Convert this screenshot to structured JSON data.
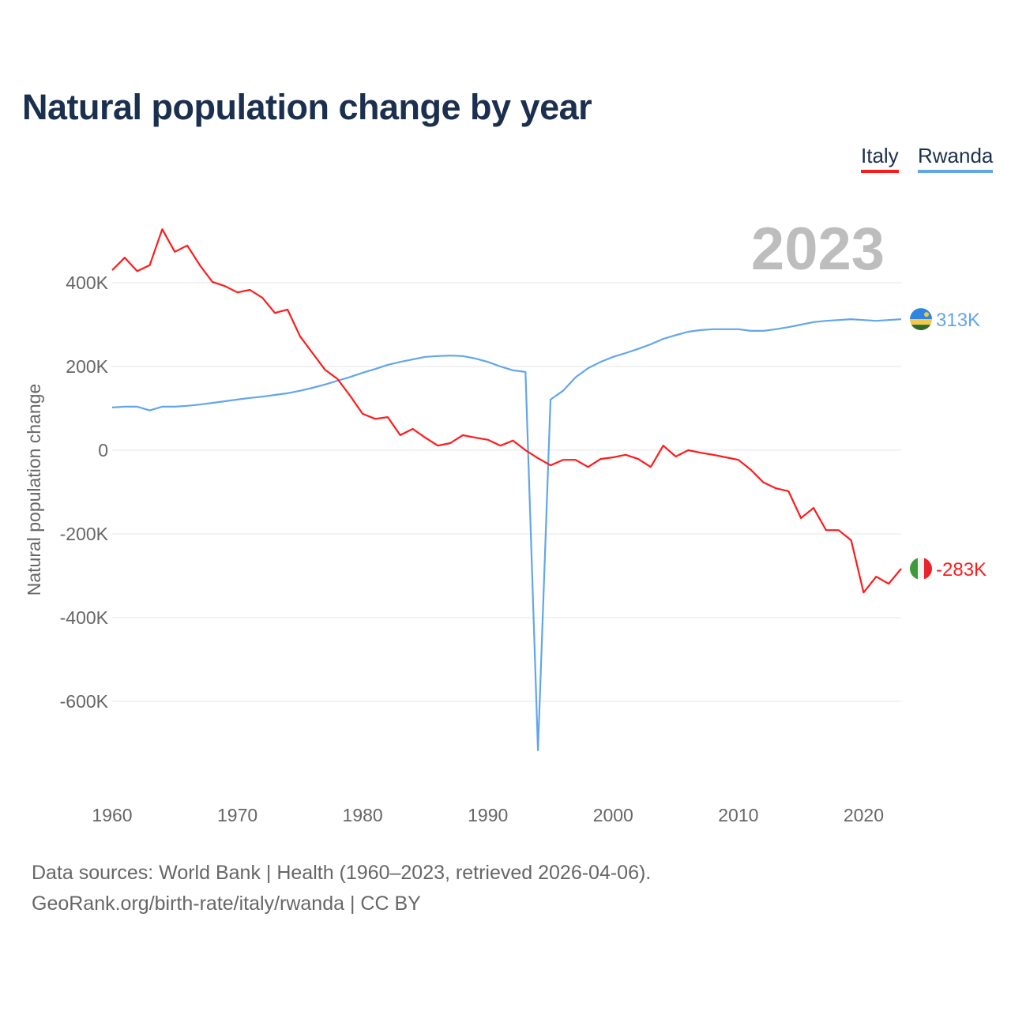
{
  "title": "Natural population change by year",
  "year_label": "2023",
  "source_line1": "Data sources: World Bank | Health (1960–2023, retrieved 2026-04-06).",
  "source_line2": "GeoRank.org/birth-rate/italy/rwanda | CC BY",
  "chart_data": {
    "type": "line",
    "title": "Natural population change by year",
    "xlabel": "",
    "ylabel": "Natural population change",
    "xlim": [
      1960,
      2023
    ],
    "ylim": [
      -800,
      560
    ],
    "unit": "thousands",
    "x_ticks": [
      "1960",
      "1970",
      "1980",
      "1990",
      "2000",
      "2010",
      "2020"
    ],
    "y_ticks": [
      {
        "v": 400,
        "label": "400K"
      },
      {
        "v": 200,
        "label": "200K"
      },
      {
        "v": 0,
        "label": "0"
      },
      {
        "v": -200,
        "label": "-200K"
      },
      {
        "v": -400,
        "label": "-400K"
      },
      {
        "v": -600,
        "label": "-600K"
      }
    ],
    "grid": true,
    "legend_position": "top-right",
    "x_start": 1960,
    "series": [
      {
        "name": "Italy",
        "color": "#ff1a1a",
        "end_label": "-283K",
        "flag": "italy-flag",
        "values": [
          430,
          460,
          428,
          442,
          528,
          474,
          489,
          442,
          402,
          392,
          377,
          383,
          364,
          328,
          336,
          272,
          232,
          192,
          170,
          130,
          87,
          75,
          79,
          36,
          51,
          30,
          11,
          17,
          36,
          30,
          25,
          11,
          23,
          0,
          -19,
          -36,
          -23,
          -23,
          -40,
          -21,
          -17,
          -11,
          -21,
          -40,
          11,
          -15,
          0,
          -6,
          -11,
          -17,
          -23,
          -47,
          -77,
          -91,
          -98,
          -162,
          -138,
          -191,
          -191,
          -215,
          -340,
          -302,
          -319,
          -283
        ]
      },
      {
        "name": "Rwanda",
        "color": "#62a6ea",
        "end_label": "313K",
        "flag": "rwanda-flag",
        "values": [
          102,
          104,
          104,
          95,
          104,
          104,
          106,
          109,
          113,
          117,
          121,
          125,
          128,
          132,
          136,
          142,
          149,
          157,
          166,
          175,
          185,
          194,
          204,
          211,
          217,
          223,
          225,
          226,
          225,
          219,
          211,
          200,
          191,
          187,
          -717,
          121,
          142,
          174,
          196,
          211,
          223,
          232,
          242,
          253,
          266,
          275,
          283,
          287,
          289,
          289,
          289,
          285,
          285,
          289,
          294,
          300,
          306,
          309,
          311,
          313,
          311,
          309,
          311,
          313
        ]
      }
    ]
  }
}
